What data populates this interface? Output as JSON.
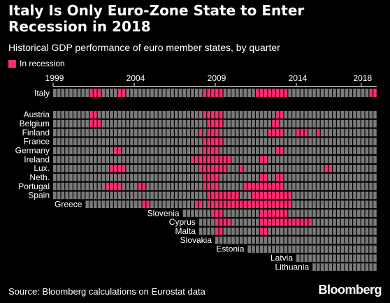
{
  "title": "Italy Is Only Euro-Zone State to Enter Recession in 2018",
  "subtitle": "Historical GDP performance of euro member states, by quarter",
  "legend_label": "In recession",
  "source": "Source: Bloomberg calculations on Eurostat data",
  "logo": "Bloomberg",
  "colors": {
    "background": "#000000",
    "not_in_recession": "#7a7a7a",
    "in_recession": "#ff2d6f",
    "text": "#ffffff"
  },
  "chart_data": {
    "type": "heatmap",
    "x_axis": {
      "start_year": 1999,
      "end_year": 2018,
      "quarters_per_year": 4,
      "tick_labels": [
        "1999",
        "2004",
        "2009",
        "2014",
        "2018"
      ]
    },
    "legend": {
      "position": "top-left",
      "entries": [
        "In recession"
      ]
    },
    "rows": [
      {
        "name": "Italy",
        "start": "1999Q1",
        "recession": [
          "2001Q2",
          "2001Q3",
          "2001Q4",
          "2003Q1",
          "2003Q2",
          "2008Q2",
          "2008Q3",
          "2008Q4",
          "2009Q1",
          "2009Q2",
          "2011Q3",
          "2011Q4",
          "2012Q1",
          "2012Q2",
          "2012Q3",
          "2012Q4",
          "2013Q1",
          "2013Q2",
          "2018Q3",
          "2018Q4"
        ]
      },
      {
        "name": "Austria",
        "start": "1999Q1",
        "recession": [
          "2001Q2",
          "2001Q3",
          "2008Q2",
          "2008Q3",
          "2008Q4",
          "2009Q1",
          "2009Q2",
          "2012Q4",
          "2013Q1"
        ]
      },
      {
        "name": "Belgium",
        "start": "1999Q1",
        "recession": [
          "2001Q2",
          "2001Q3",
          "2001Q4",
          "2008Q3",
          "2008Q4",
          "2009Q1",
          "2009Q2",
          "2012Q3",
          "2012Q4"
        ]
      },
      {
        "name": "Finland",
        "start": "1999Q1",
        "recession": [
          "2008Q1",
          "2008Q3",
          "2008Q4",
          "2009Q1",
          "2012Q2",
          "2012Q3",
          "2012Q4",
          "2013Q1",
          "2014Q1",
          "2014Q2",
          "2014Q3",
          "2015Q2"
        ]
      },
      {
        "name": "France",
        "start": "1999Q1",
        "recession": [
          "2008Q2",
          "2008Q3",
          "2008Q4",
          "2009Q1",
          "2009Q2"
        ]
      },
      {
        "name": "Germany",
        "start": "1999Q1",
        "recession": [
          "2002Q4",
          "2003Q1",
          "2008Q2",
          "2008Q3",
          "2008Q4",
          "2009Q1",
          "2012Q4",
          "2013Q1"
        ]
      },
      {
        "name": "Ireland",
        "start": "1999Q1",
        "recession": [
          "2007Q3",
          "2007Q4",
          "2008Q1",
          "2008Q2",
          "2008Q3",
          "2008Q4",
          "2009Q1",
          "2009Q2",
          "2009Q3",
          "2009Q4",
          "2011Q4",
          "2012Q1"
        ]
      },
      {
        "name": "Lux.",
        "start": "1999Q1",
        "recession": [
          "2002Q3",
          "2002Q4",
          "2003Q1",
          "2003Q2",
          "2008Q1",
          "2008Q2",
          "2008Q3",
          "2008Q4",
          "2009Q1",
          "2009Q2",
          "2009Q3",
          "2010Q3",
          "2015Q4",
          "2016Q1"
        ]
      },
      {
        "name": "Neth.",
        "start": "1999Q1",
        "recession": [
          "2008Q2",
          "2008Q3",
          "2008Q4",
          "2009Q1",
          "2011Q4",
          "2012Q1",
          "2012Q4",
          "2013Q1"
        ]
      },
      {
        "name": "Portugal",
        "start": "1999Q1",
        "recession": [
          "2002Q2",
          "2002Q3",
          "2002Q4",
          "2003Q1",
          "2004Q2",
          "2004Q3",
          "2008Q2",
          "2008Q3",
          "2008Q4",
          "2009Q1",
          "2010Q4",
          "2011Q1",
          "2011Q2",
          "2011Q3",
          "2011Q4",
          "2012Q1",
          "2012Q2",
          "2012Q3",
          "2012Q4",
          "2013Q1"
        ]
      },
      {
        "name": "Spain",
        "start": "1999Q1",
        "recession": [
          "2008Q3",
          "2008Q4",
          "2009Q1",
          "2009Q2",
          "2009Q3",
          "2009Q4",
          "2010Q1",
          "2010Q2",
          "2011Q2",
          "2011Q3",
          "2011Q4",
          "2012Q1",
          "2012Q2",
          "2012Q3",
          "2012Q4",
          "2013Q1",
          "2013Q2",
          "2013Q3"
        ]
      },
      {
        "name": "Greece",
        "start": "2001Q1",
        "recession": [
          "2004Q3",
          "2004Q4",
          "2007Q4",
          "2008Q1",
          "2008Q3",
          "2008Q4",
          "2009Q1",
          "2009Q2",
          "2009Q3",
          "2009Q4",
          "2010Q1",
          "2010Q2",
          "2010Q3",
          "2010Q4",
          "2011Q1",
          "2011Q2",
          "2011Q3",
          "2011Q4",
          "2012Q1",
          "2012Q2",
          "2012Q3",
          "2012Q4",
          "2013Q1",
          "2013Q2",
          "2013Q3"
        ]
      },
      {
        "name": "Slovenia",
        "start": "2007Q1",
        "recession": [
          "2008Q4",
          "2009Q1",
          "2009Q2",
          "2011Q4",
          "2012Q1",
          "2012Q2",
          "2012Q3",
          "2012Q4",
          "2013Q1",
          "2013Q2"
        ]
      },
      {
        "name": "Cyprus",
        "start": "2008Q1",
        "recession": [
          "2009Q1",
          "2009Q2",
          "2009Q3",
          "2009Q4",
          "2011Q4",
          "2012Q1",
          "2012Q2",
          "2012Q3",
          "2012Q4",
          "2013Q1",
          "2013Q2",
          "2013Q3",
          "2013Q4",
          "2014Q1",
          "2014Q2",
          "2014Q3",
          "2014Q4"
        ]
      },
      {
        "name": "Malta",
        "start": "2008Q1",
        "recession": [
          "2009Q1",
          "2009Q2",
          "2011Q4",
          "2012Q1"
        ]
      },
      {
        "name": "Slovakia",
        "start": "2009Q1",
        "recession": []
      },
      {
        "name": "Estonia",
        "start": "2011Q1",
        "recession": []
      },
      {
        "name": "Latvia",
        "start": "2014Q1",
        "recession": []
      },
      {
        "name": "Lithuania",
        "start": "2015Q1",
        "recession": []
      }
    ]
  }
}
